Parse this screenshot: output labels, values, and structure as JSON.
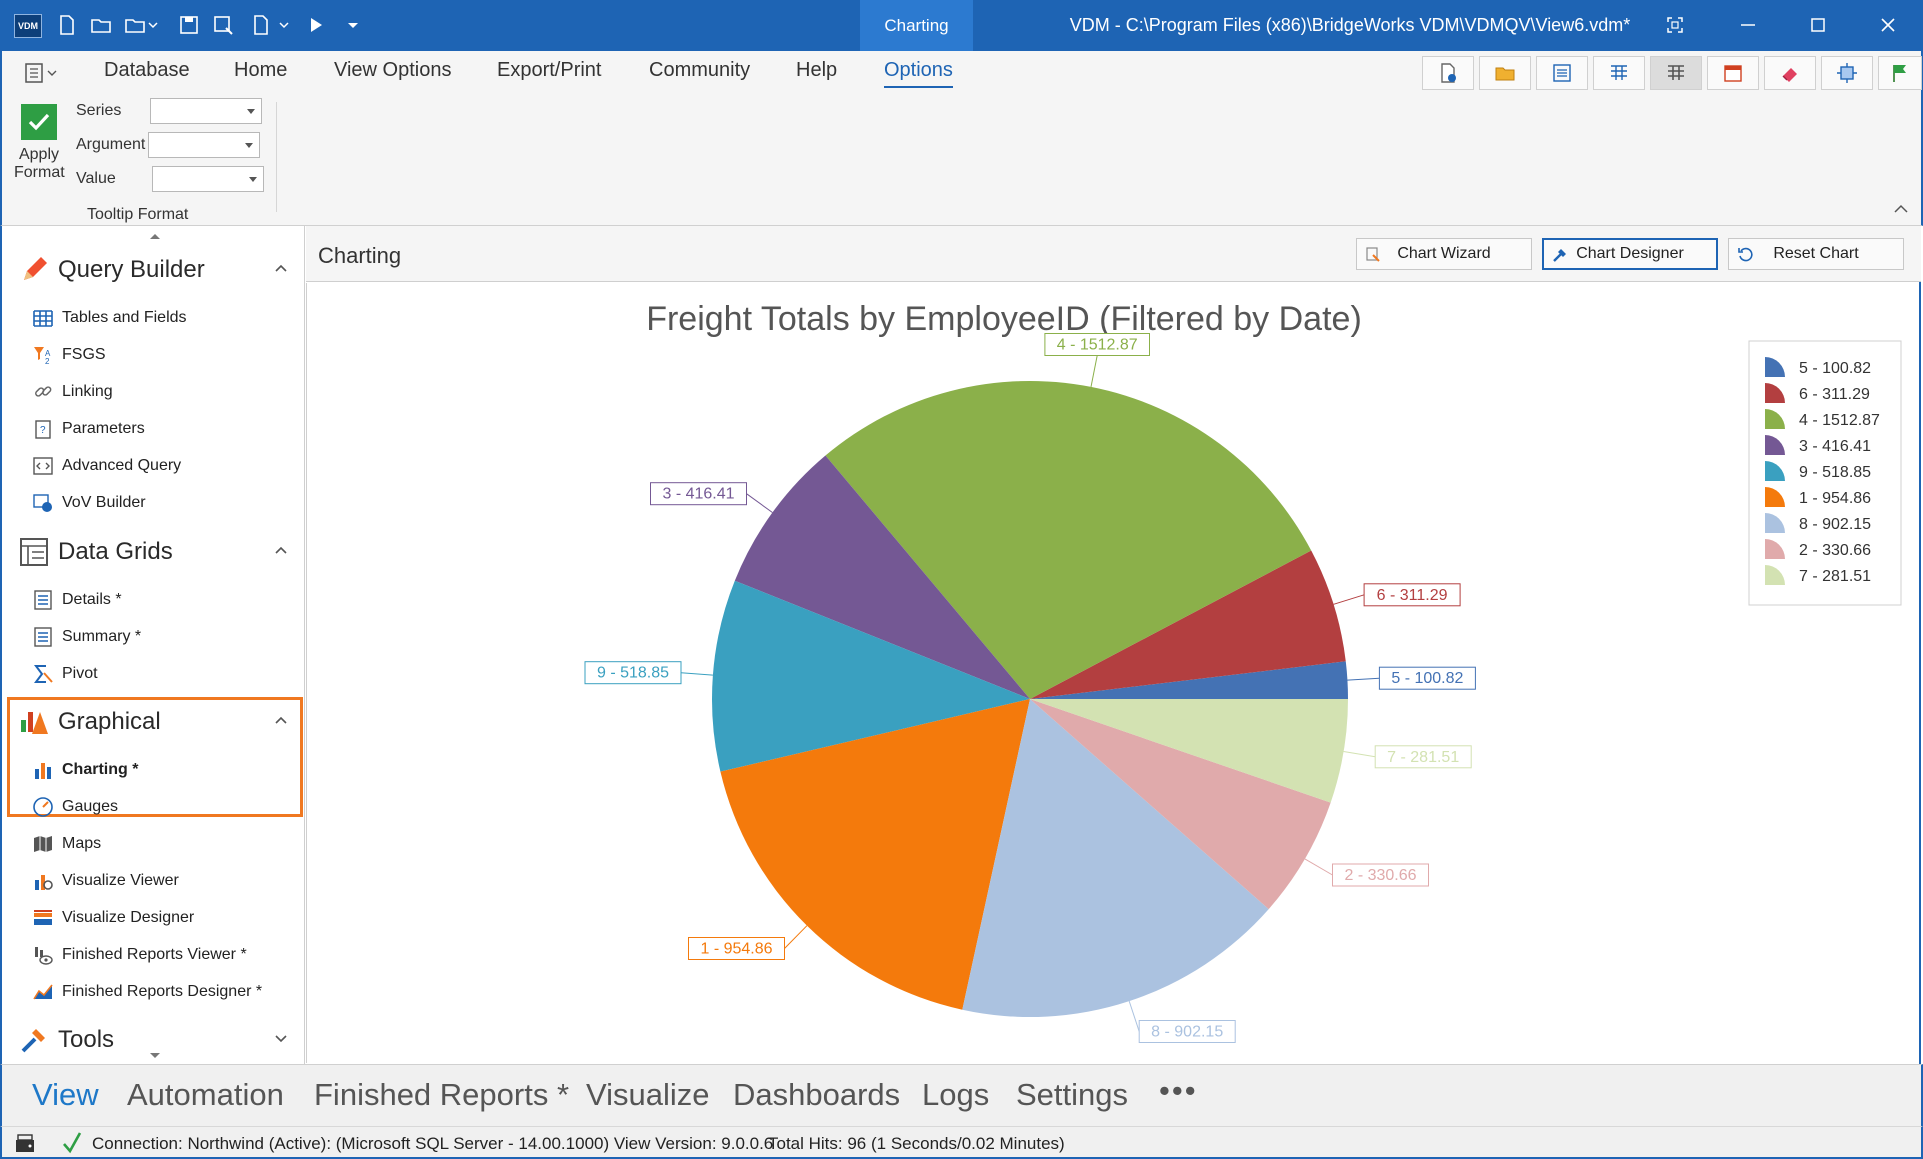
{
  "window": {
    "logo_text": "VDM",
    "context_tab": "Charting",
    "title": "VDM - C:\\Program Files (x86)\\BridgeWorks VDM\\VDMQV\\View6.vdm*"
  },
  "ribbon": {
    "tabs": [
      "Database",
      "Home",
      "View Options",
      "Export/Print",
      "Community",
      "Help",
      "Options"
    ],
    "active_tab": "Options",
    "apply_format_label_1": "Apply",
    "apply_format_label_2": "Format",
    "series_label": "Series",
    "argument_label": "Argument",
    "value_label": "Value",
    "series_value": "",
    "argument_value": "",
    "value_value": "",
    "group_label": "Tooltip Format"
  },
  "sidebar": {
    "query_builder": {
      "title": "Query Builder",
      "items": [
        "Tables and Fields",
        "FSGS",
        "Linking",
        "Parameters",
        "Advanced Query",
        "VoV Builder"
      ]
    },
    "data_grids": {
      "title": "Data Grids",
      "items": [
        "Details *",
        "Summary *",
        "Pivot"
      ]
    },
    "graphical": {
      "title": "Graphical",
      "items": [
        "Charting *",
        "Gauges",
        "Maps",
        "Visualize Viewer",
        "Visualize Designer",
        "Finished Reports Viewer *",
        "Finished Reports Designer *"
      ],
      "active_item": "Charting *"
    },
    "tools": {
      "title": "Tools"
    }
  },
  "content": {
    "title": "Charting",
    "buttons": {
      "wizard": "Chart Wizard",
      "designer": "Chart Designer",
      "reset": "Reset Chart"
    }
  },
  "chart_data": {
    "type": "pie",
    "title": "Freight Totals by EmployeeID (Filtered by Date)",
    "legend_position": "top-right",
    "slices": [
      {
        "label": "5 - 100.82",
        "employee_id": 5,
        "value": 100.82,
        "color": "#4472b4"
      },
      {
        "label": "6 - 311.29",
        "employee_id": 6,
        "value": 311.29,
        "color": "#b33f40"
      },
      {
        "label": "4 - 1512.87",
        "employee_id": 4,
        "value": 1512.87,
        "color": "#8bb04a"
      },
      {
        "label": "3 - 416.41",
        "employee_id": 3,
        "value": 416.41,
        "color": "#745894"
      },
      {
        "label": "9 - 518.85",
        "employee_id": 9,
        "value": 518.85,
        "color": "#3aa0c0"
      },
      {
        "label": "1 - 954.86",
        "employee_id": 1,
        "value": 954.86,
        "color": "#f47a0c"
      },
      {
        "label": "8 - 902.15",
        "employee_id": 8,
        "value": 902.15,
        "color": "#abc2e0"
      },
      {
        "label": "2 - 330.66",
        "employee_id": 2,
        "value": 330.66,
        "color": "#e0aaab"
      },
      {
        "label": "7 - 281.51",
        "employee_id": 7,
        "value": 281.51,
        "color": "#d3e2b2"
      }
    ]
  },
  "bottom_nav": {
    "items": [
      "View",
      "Automation",
      "Finished Reports *",
      "Visualize",
      "Dashboards",
      "Logs",
      "Settings",
      "•••"
    ],
    "active": "View"
  },
  "status": {
    "connection": "Connection: Northwind (Active): (Microsoft SQL Server - 14.00.1000) View Version: 9.0.0.6",
    "hits": "Total Hits: 96 (1 Seconds/0.02 Minutes)"
  },
  "colors": {
    "accent": "#1e64b4",
    "highlight": "#f07820"
  }
}
